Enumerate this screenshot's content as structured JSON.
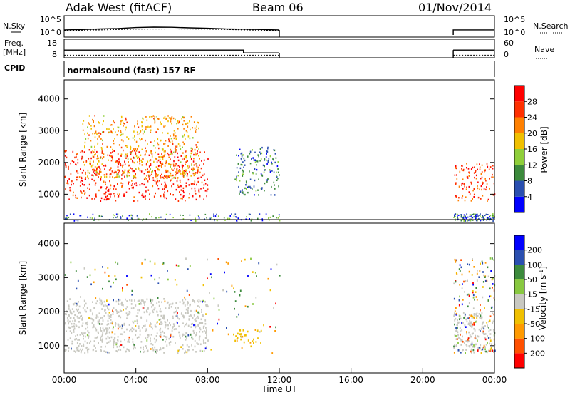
{
  "header": {
    "title": "Adak West (fitACF)",
    "beam": "Beam 06",
    "date": "01/Nov/2014"
  },
  "noise_panel": {
    "left_label": "N.Sky",
    "right_label": "N.Search",
    "left_ticks": [
      "10^5",
      "10^0"
    ],
    "right_ticks": [
      "10^5",
      "10^0"
    ]
  },
  "freq_panel": {
    "left_label_1": "Freq.",
    "left_label_2": "[MHz]",
    "right_label": "Nave",
    "left_ticks": [
      "18",
      "8"
    ],
    "right_ticks": [
      "60",
      "0"
    ],
    "cpid_label": "CPID",
    "cpid_text": "normalsound (fast) 157 RF"
  },
  "colors": {
    "power_scale": [
      "#0000ff",
      "#2a4fb0",
      "#3c8a3c",
      "#8fcf3a",
      "#f0c000",
      "#ff8000",
      "#ff3000",
      "#ff0000"
    ],
    "velocity_scale": [
      "#ff0000",
      "#ff5000",
      "#ff9a00",
      "#f0c000",
      "#c8c8c0",
      "#88c840",
      "#3c8a3c",
      "#2a4fb0",
      "#0000ff"
    ],
    "ground_scatter": "#c8c8c0"
  },
  "chart_data": [
    {
      "type": "heatmap",
      "name": "power",
      "ylabel": "Slant Range [km]",
      "yticks": [
        1000,
        2000,
        3000,
        4000
      ],
      "ylim": [
        200,
        4600
      ],
      "xlim": [
        "00:00",
        "24:00"
      ],
      "colorbar": {
        "label": "Power [dB]",
        "ticks": [
          "4",
          "8",
          "12",
          "16",
          "20",
          "24",
          "28"
        ],
        "range": [
          0,
          32
        ]
      },
      "data_coverage_hours": [
        [
          0,
          12
        ],
        [
          21.7,
          24
        ]
      ],
      "regions": [
        {
          "time_start": 0,
          "time_end": 8,
          "range_min": 800,
          "range_max": 2400,
          "power_db": 28
        },
        {
          "time_start": 1,
          "time_end": 7.5,
          "range_min": 1500,
          "range_max": 3500,
          "power_db": 20
        },
        {
          "time_start": 9.5,
          "time_end": 12,
          "range_min": 1000,
          "range_max": 2500,
          "power_db": 8
        },
        {
          "time_start": 21.7,
          "time_end": 24,
          "range_min": 800,
          "range_max": 2000,
          "power_db": 26
        }
      ]
    },
    {
      "type": "heatmap",
      "name": "velocity",
      "ylabel": "Slant Range [km]",
      "xlabel": "Time UT",
      "yticks": [
        1000,
        2000,
        3000,
        4000
      ],
      "ylim": [
        200,
        4600
      ],
      "xticks": [
        "00:00",
        "04:00",
        "08:00",
        "12:00",
        "16:00",
        "20:00",
        "00:00"
      ],
      "xlim": [
        "00:00",
        "24:00"
      ],
      "colorbar": {
        "label": "Velocity [m s^-1]",
        "ticks": [
          "-200",
          "-100",
          "-50",
          "-15",
          "15",
          "50",
          "100",
          "200"
        ]
      },
      "data_coverage_hours": [
        [
          0,
          12
        ],
        [
          21.7,
          24
        ]
      ],
      "regions": [
        {
          "time_start": 0,
          "time_end": 8,
          "range_min": 800,
          "range_max": 2400,
          "velocity_ms": 0,
          "note": "ground scatter"
        },
        {
          "time_start": 9.5,
          "time_end": 11,
          "range_min": 1100,
          "range_max": 1500,
          "velocity_ms": -50
        },
        {
          "time_start": 21.7,
          "time_end": 24,
          "range_min": 800,
          "range_max": 2000,
          "velocity_ms": 0
        }
      ]
    },
    {
      "type": "line",
      "name": "noise",
      "series": [
        {
          "name": "N.Sky",
          "x": [
            0,
            1,
            2,
            3,
            4,
            5,
            6,
            7,
            8,
            9,
            10,
            11,
            12
          ],
          "y": [
            30,
            40,
            60,
            80,
            150,
            200,
            180,
            120,
            90,
            60,
            50,
            40,
            30
          ]
        },
        {
          "name": "N.Search",
          "x": [
            0,
            2,
            4,
            6,
            8,
            10,
            12
          ],
          "y": [
            20,
            30,
            50,
            60,
            50,
            30,
            20
          ]
        }
      ],
      "segments_hours": [
        [
          0,
          12
        ],
        [
          21.7,
          24
        ]
      ],
      "yscale": "log"
    },
    {
      "type": "line",
      "name": "frequency",
      "series": [
        {
          "name": "Freq.",
          "x": [
            0,
            10,
            10,
            12,
            21.7,
            24
          ],
          "y": [
            13.5,
            13.5,
            11,
            11,
            13.5,
            13.5
          ]
        },
        {
          "name": "Nave",
          "x": [
            0,
            12,
            21.7,
            24
          ],
          "y": [
            6,
            6,
            6,
            6
          ]
        }
      ],
      "segments_hours": [
        [
          0,
          12
        ],
        [
          21.7,
          24
        ]
      ]
    }
  ]
}
